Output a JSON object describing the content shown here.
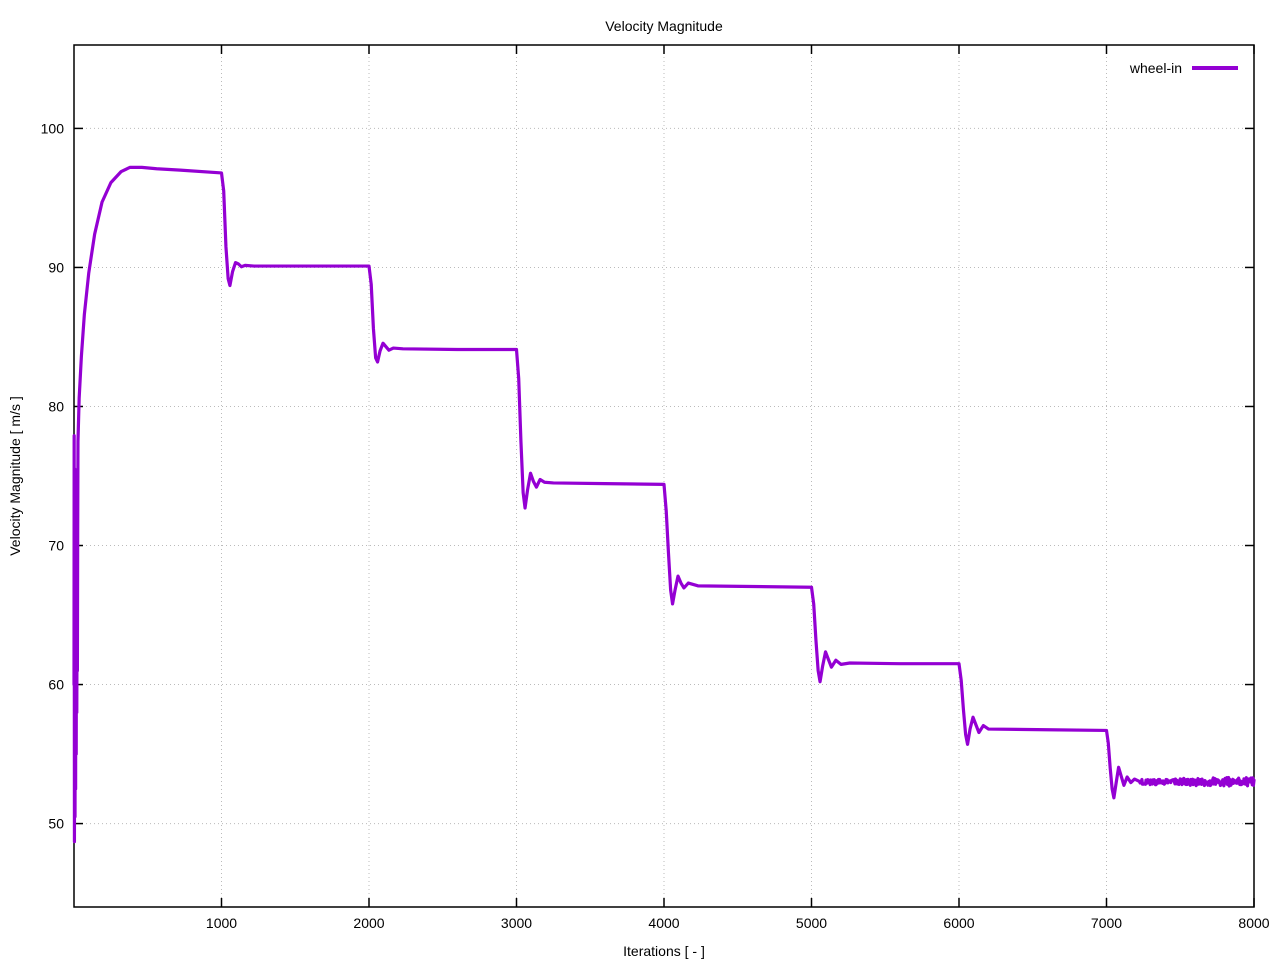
{
  "chart_data": {
    "type": "line",
    "title": "Velocity Magnitude",
    "xlabel": "Iterations [ - ]",
    "ylabel": "Velocity Magnitude [ m/s ]",
    "xlim": [
      0,
      8000
    ],
    "ylim": [
      44,
      106
    ],
    "x_ticks": [
      1000,
      2000,
      3000,
      4000,
      5000,
      6000,
      7000,
      8000
    ],
    "y_ticks": [
      50,
      60,
      70,
      80,
      90,
      100
    ],
    "grid": true,
    "legend_position": "top-right-inside",
    "background_color": "#ffffff",
    "grid_color": "#bbbbbb",
    "axis_color": "#000000",
    "series": [
      {
        "name": "wheel-in",
        "color": "#9400d3",
        "points": [
          [
            0,
            60
          ],
          [
            1,
            77.9
          ],
          [
            3,
            48.7
          ],
          [
            5,
            75.5
          ],
          [
            7,
            50.5
          ],
          [
            9,
            73.5
          ],
          [
            11,
            52.5
          ],
          [
            13,
            71
          ],
          [
            15,
            55
          ],
          [
            17,
            69
          ],
          [
            19,
            58
          ],
          [
            21,
            66.5
          ],
          [
            23,
            61
          ],
          [
            25,
            71
          ],
          [
            27,
            77.5
          ],
          [
            35,
            80.6
          ],
          [
            50,
            83.6
          ],
          [
            70,
            86.6
          ],
          [
            100,
            89.6
          ],
          [
            140,
            92.4
          ],
          [
            190,
            94.7
          ],
          [
            250,
            96.1
          ],
          [
            320,
            96.9
          ],
          [
            380,
            97.2
          ],
          [
            460,
            97.2
          ],
          [
            560,
            97.1
          ],
          [
            720,
            97.0
          ],
          [
            1000,
            96.8
          ],
          [
            1015,
            95.5
          ],
          [
            1030,
            91.5
          ],
          [
            1045,
            89.2
          ],
          [
            1057,
            88.7
          ],
          [
            1075,
            89.7
          ],
          [
            1095,
            90.35
          ],
          [
            1115,
            90.25
          ],
          [
            1135,
            90.05
          ],
          [
            1160,
            90.15
          ],
          [
            1220,
            90.1
          ],
          [
            1500,
            90.1
          ],
          [
            2000,
            90.1
          ],
          [
            2015,
            88.8
          ],
          [
            2030,
            85.6
          ],
          [
            2045,
            83.5
          ],
          [
            2058,
            83.2
          ],
          [
            2075,
            84.0
          ],
          [
            2095,
            84.55
          ],
          [
            2115,
            84.3
          ],
          [
            2135,
            84.05
          ],
          [
            2165,
            84.2
          ],
          [
            2230,
            84.15
          ],
          [
            2600,
            84.1
          ],
          [
            3000,
            84.1
          ],
          [
            3015,
            82.0
          ],
          [
            3030,
            77.5
          ],
          [
            3045,
            73.8
          ],
          [
            3058,
            72.7
          ],
          [
            3075,
            74.0
          ],
          [
            3095,
            75.2
          ],
          [
            3115,
            74.6
          ],
          [
            3135,
            74.2
          ],
          [
            3160,
            74.75
          ],
          [
            3190,
            74.55
          ],
          [
            3250,
            74.5
          ],
          [
            3600,
            74.45
          ],
          [
            4000,
            74.4
          ],
          [
            4015,
            72.5
          ],
          [
            4030,
            69.5
          ],
          [
            4045,
            66.8
          ],
          [
            4058,
            65.8
          ],
          [
            4075,
            66.8
          ],
          [
            4095,
            67.8
          ],
          [
            4115,
            67.3
          ],
          [
            4135,
            66.95
          ],
          [
            4165,
            67.3
          ],
          [
            4230,
            67.1
          ],
          [
            4600,
            67.05
          ],
          [
            5000,
            67.0
          ],
          [
            5015,
            65.8
          ],
          [
            5030,
            63.2
          ],
          [
            5045,
            61.0
          ],
          [
            5058,
            60.2
          ],
          [
            5075,
            61.3
          ],
          [
            5095,
            62.35
          ],
          [
            5115,
            61.8
          ],
          [
            5135,
            61.25
          ],
          [
            5165,
            61.75
          ],
          [
            5200,
            61.45
          ],
          [
            5260,
            61.55
          ],
          [
            5600,
            61.5
          ],
          [
            6000,
            61.5
          ],
          [
            6015,
            60.3
          ],
          [
            6030,
            58.2
          ],
          [
            6045,
            56.4
          ],
          [
            6058,
            55.7
          ],
          [
            6075,
            56.8
          ],
          [
            6095,
            57.65
          ],
          [
            6115,
            57.1
          ],
          [
            6135,
            56.55
          ],
          [
            6165,
            57.05
          ],
          [
            6200,
            56.8
          ],
          [
            6600,
            56.75
          ],
          [
            7000,
            56.7
          ],
          [
            7012,
            55.8
          ],
          [
            7025,
            54.0
          ],
          [
            7038,
            52.5
          ],
          [
            7050,
            51.85
          ],
          [
            7065,
            52.9
          ],
          [
            7082,
            54.05
          ],
          [
            7100,
            53.4
          ],
          [
            7118,
            52.75
          ],
          [
            7140,
            53.35
          ],
          [
            7165,
            52.95
          ],
          [
            7190,
            53.2
          ],
          [
            7220,
            53.05
          ]
        ],
        "noise_tail": {
          "x_start": 7220,
          "x_end": 8000,
          "base": 53.0,
          "amplitude": 0.35,
          "x_step": 4
        }
      }
    ]
  }
}
